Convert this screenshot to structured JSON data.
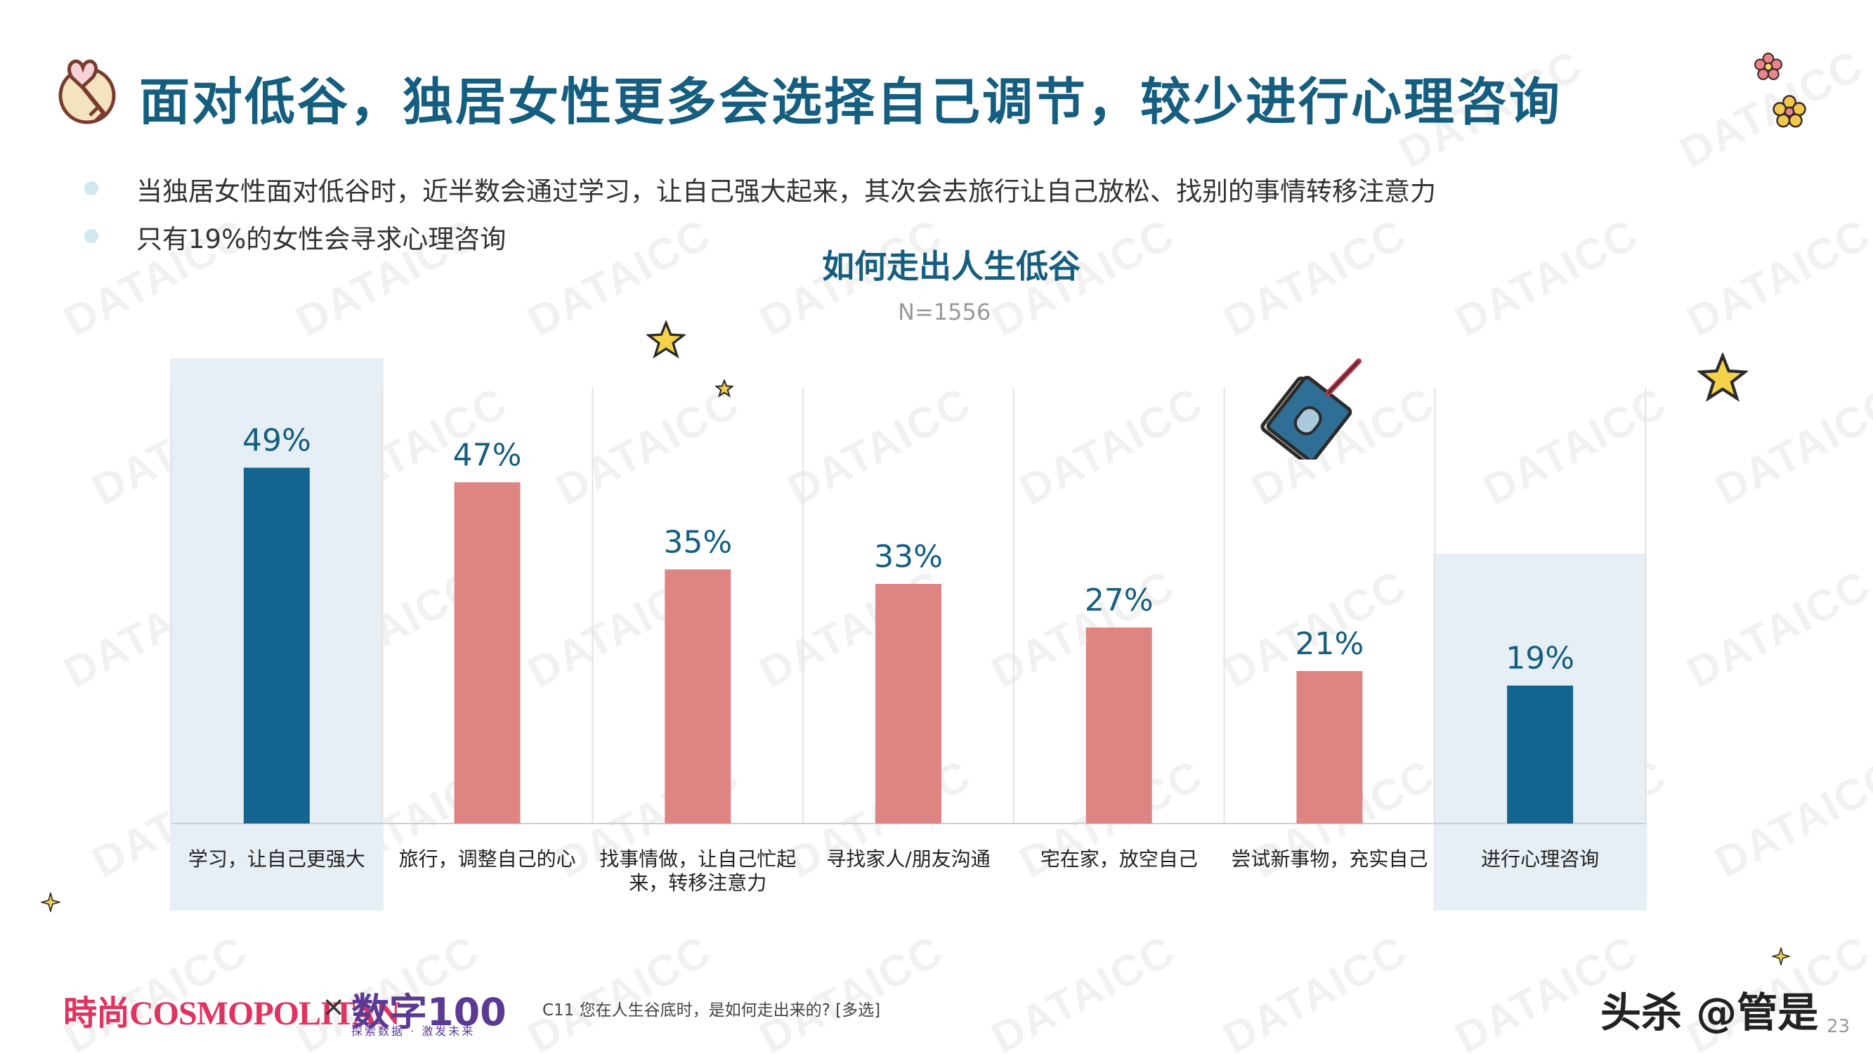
{
  "title": "面对低谷，独居女性更多会选择自己调节，较少进行心理咨询",
  "bullets": [
    "当独居女性面对低谷时，近半数会通过学习，让自己强大起来，其次会去旅行让自己放松、找别的事情转移注意力",
    "只有19%的女性会寻求心理咨询"
  ],
  "chart_data": {
    "type": "bar",
    "title": "如何走出人生低谷",
    "subtitle": "N=1556",
    "categories": [
      [
        "学习，让自己更强大"
      ],
      [
        "旅行，调整自己的心"
      ],
      [
        "找事情做，让自己忙起",
        "来，转移注意力"
      ],
      [
        "寻找家人/朋友沟通"
      ],
      [
        "宅在家，放空自己"
      ],
      [
        "尝试新事物，充实自己"
      ],
      [
        "进行心理咨询"
      ]
    ],
    "values": [
      49,
      47,
      35,
      33,
      27,
      21,
      19
    ],
    "value_labels": [
      "49%",
      "47%",
      "35%",
      "33%",
      "27%",
      "21%",
      "19%"
    ],
    "highlighted": [
      true,
      false,
      false,
      false,
      false,
      false,
      true
    ],
    "colors": {
      "highlight": "#13648f",
      "normal": "#de8583",
      "highlight_bg": "#e6eff5",
      "grid": "#e3e3e3",
      "label": "#155e80"
    },
    "ylim": [
      0,
      60
    ],
    "grid": true
  },
  "watermark_text": "DATAICC",
  "footer": {
    "brand": "時尚COSMOPOLITAN",
    "times": "×",
    "partner": "数字100",
    "partner_sub": "探索数据 · 激发未来",
    "question": "C11 您在人生谷底时，是如何走出来的? [多选]",
    "source": "头杀 @管是",
    "page": "23"
  },
  "icons": [
    "key-heart-icon",
    "star-icon",
    "notebook-pen-icon",
    "flower-icon"
  ]
}
